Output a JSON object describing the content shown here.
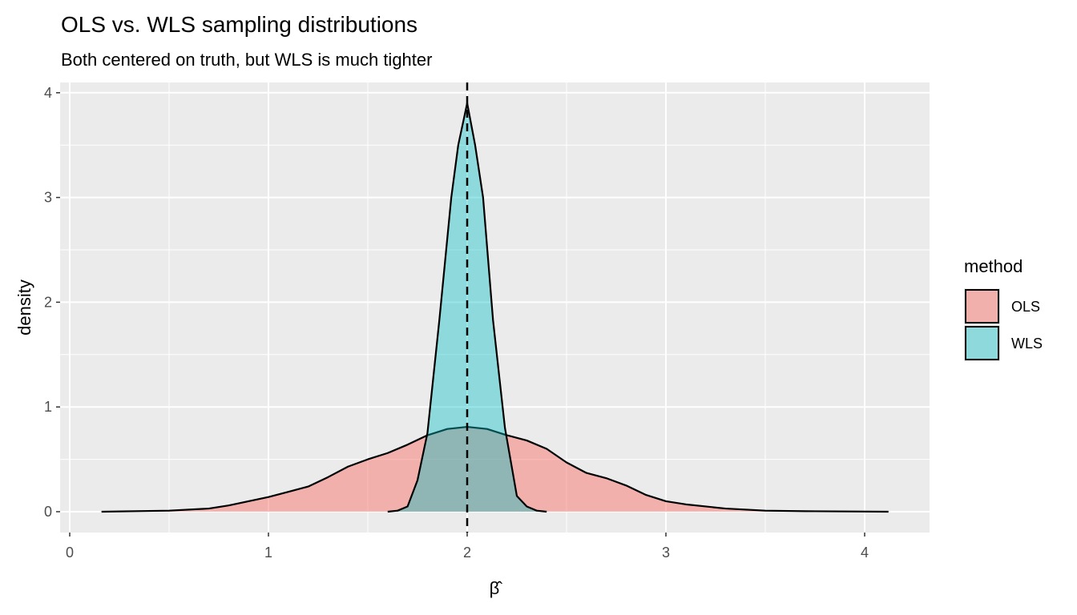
{
  "chart_data": {
    "type": "area",
    "title": "OLS vs. WLS sampling distributions",
    "subtitle": "Both centered on truth, but WLS is much tighter",
    "xlabel": "β̂",
    "ylabel": "density",
    "xlim": [
      -0.05,
      4.3
    ],
    "ylim": [
      -0.2,
      4.1
    ],
    "xticks": [
      0,
      1,
      2,
      3,
      4
    ],
    "yticks": [
      0,
      1,
      2,
      3,
      4
    ],
    "grid": true,
    "vline": {
      "x": 2,
      "style": "dashed"
    },
    "legend": {
      "title": "method",
      "position": "right"
    },
    "series": [
      {
        "name": "OLS",
        "color": "#F8766D",
        "x": [
          0.16,
          0.5,
          0.7,
          0.8,
          0.9,
          1.0,
          1.1,
          1.2,
          1.3,
          1.4,
          1.5,
          1.6,
          1.7,
          1.8,
          1.9,
          2.0,
          2.1,
          2.2,
          2.3,
          2.4,
          2.5,
          2.6,
          2.7,
          2.8,
          2.9,
          3.0,
          3.1,
          3.2,
          3.3,
          3.5,
          3.7,
          4.12
        ],
        "y": [
          0,
          0.01,
          0.03,
          0.06,
          0.1,
          0.14,
          0.19,
          0.24,
          0.33,
          0.43,
          0.5,
          0.56,
          0.64,
          0.73,
          0.79,
          0.81,
          0.79,
          0.73,
          0.68,
          0.6,
          0.47,
          0.37,
          0.32,
          0.25,
          0.16,
          0.1,
          0.07,
          0.05,
          0.03,
          0.01,
          0.005,
          0
        ]
      },
      {
        "name": "WLS",
        "color": "#00BFC4",
        "x": [
          1.6,
          1.65,
          1.7,
          1.75,
          1.8,
          1.86,
          1.92,
          1.955,
          2.0,
          2.04,
          2.08,
          2.13,
          2.19,
          2.25,
          2.3,
          2.35,
          2.4
        ],
        "y": [
          0,
          0.01,
          0.05,
          0.3,
          0.75,
          1.83,
          3.0,
          3.5,
          3.9,
          3.5,
          3.0,
          1.83,
          0.8,
          0.15,
          0.05,
          0.01,
          0
        ]
      }
    ]
  }
}
